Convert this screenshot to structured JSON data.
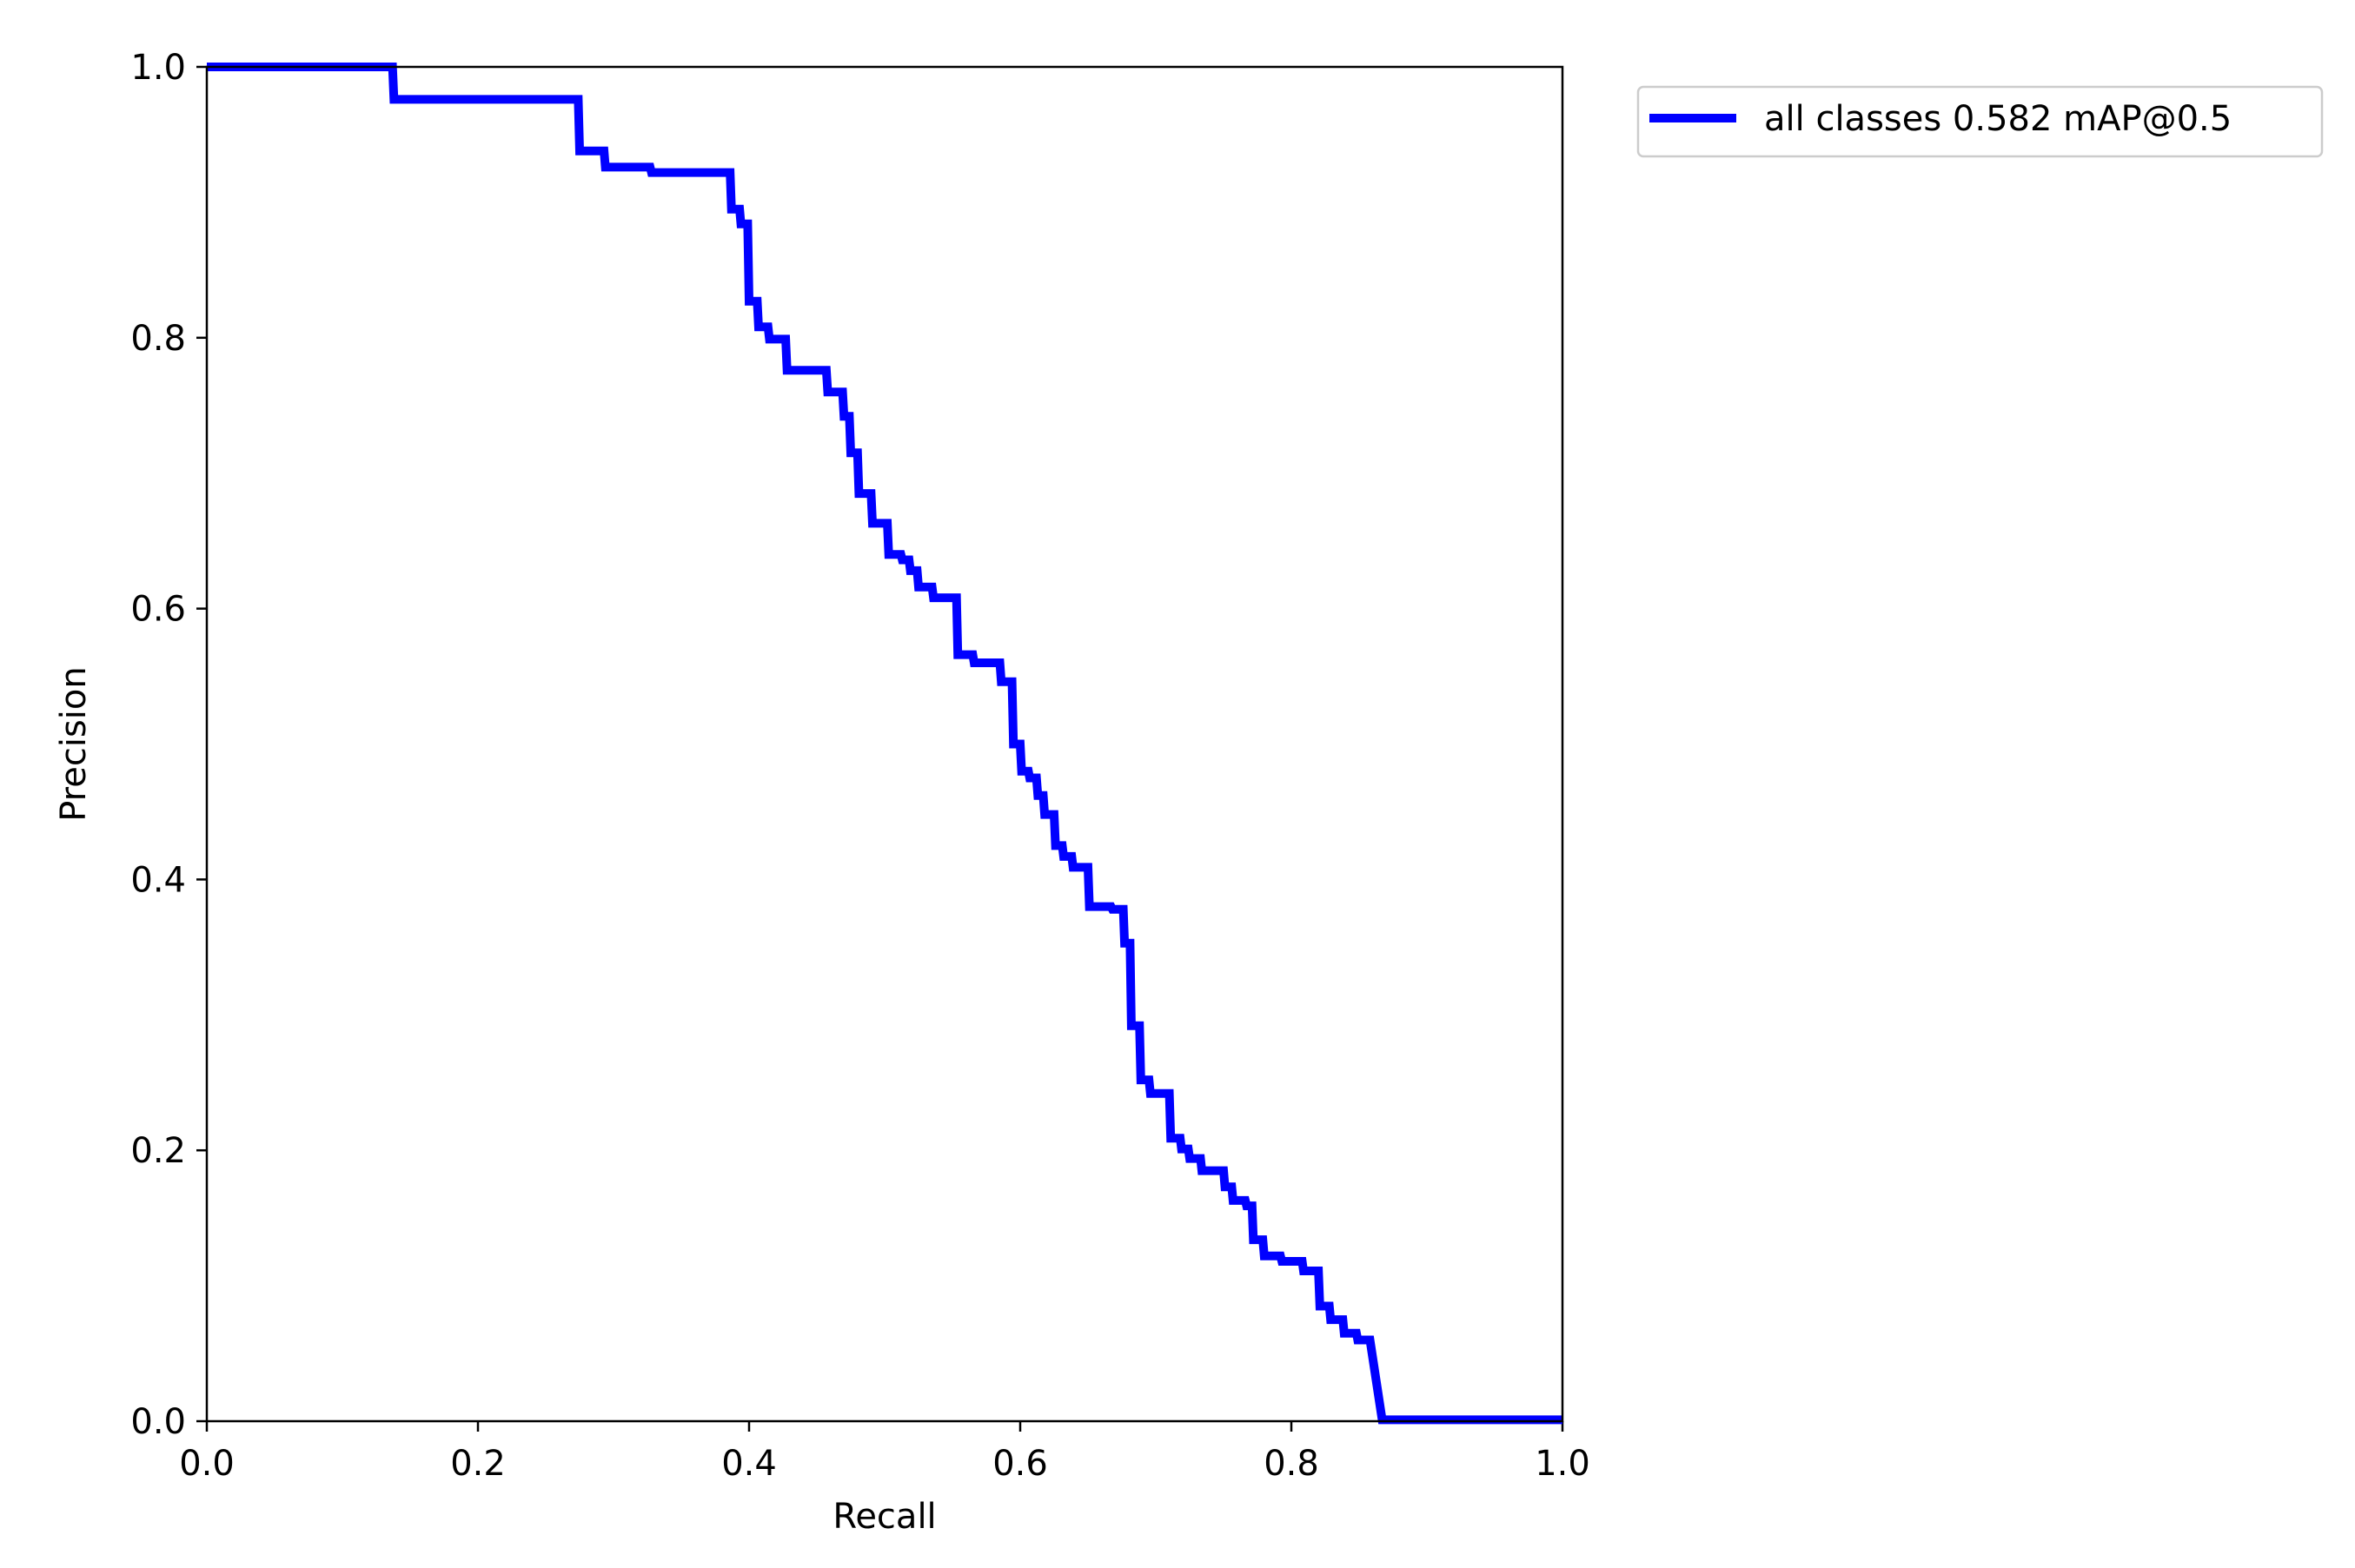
{
  "chart_data": {
    "type": "line",
    "title": "",
    "xlabel": "Recall",
    "ylabel": "Precision",
    "xlim": [
      0,
      1
    ],
    "ylim": [
      0,
      1
    ],
    "xticks": [
      "0.0",
      "0.2",
      "0.4",
      "0.6",
      "0.8",
      "1.0"
    ],
    "yticks": [
      "0.0",
      "0.2",
      "0.4",
      "0.6",
      "0.8",
      "1.0"
    ],
    "grid": false,
    "legend_position": "outside top-right",
    "series": [
      {
        "name": "all classes 0.582 mAP@0.5",
        "color": "#0000ff",
        "x": [
          0.0,
          0.137,
          0.138,
          0.274,
          0.275,
          0.293,
          0.294,
          0.327,
          0.328,
          0.386,
          0.387,
          0.393,
          0.394,
          0.399,
          0.4,
          0.406,
          0.407,
          0.414,
          0.415,
          0.427,
          0.428,
          0.457,
          0.458,
          0.469,
          0.47,
          0.474,
          0.475,
          0.48,
          0.481,
          0.49,
          0.491,
          0.502,
          0.503,
          0.512,
          0.513,
          0.518,
          0.519,
          0.524,
          0.525,
          0.535,
          0.536,
          0.553,
          0.554,
          0.565,
          0.566,
          0.585,
          0.586,
          0.594,
          0.595,
          0.6,
          0.601,
          0.606,
          0.607,
          0.612,
          0.613,
          0.617,
          0.618,
          0.625,
          0.626,
          0.631,
          0.632,
          0.638,
          0.639,
          0.65,
          0.651,
          0.667,
          0.668,
          0.676,
          0.677,
          0.681,
          0.682,
          0.688,
          0.689,
          0.695,
          0.696,
          0.71,
          0.711,
          0.718,
          0.719,
          0.724,
          0.725,
          0.733,
          0.734,
          0.75,
          0.751,
          0.756,
          0.757,
          0.766,
          0.767,
          0.771,
          0.772,
          0.779,
          0.78,
          0.792,
          0.793,
          0.808,
          0.809,
          0.82,
          0.821,
          0.828,
          0.829,
          0.838,
          0.839,
          0.848,
          0.849,
          0.858,
          0.867,
          1.0
        ],
        "y": [
          1.0,
          1.0,
          0.976,
          0.976,
          0.938,
          0.938,
          0.926,
          0.926,
          0.922,
          0.922,
          0.895,
          0.895,
          0.884,
          0.884,
          0.827,
          0.827,
          0.808,
          0.808,
          0.799,
          0.799,
          0.776,
          0.776,
          0.76,
          0.76,
          0.742,
          0.742,
          0.715,
          0.715,
          0.685,
          0.685,
          0.663,
          0.663,
          0.64,
          0.64,
          0.636,
          0.636,
          0.628,
          0.628,
          0.616,
          0.616,
          0.608,
          0.608,
          0.566,
          0.566,
          0.56,
          0.56,
          0.546,
          0.546,
          0.5,
          0.5,
          0.48,
          0.48,
          0.475,
          0.475,
          0.462,
          0.462,
          0.448,
          0.448,
          0.425,
          0.425,
          0.417,
          0.417,
          0.409,
          0.409,
          0.38,
          0.38,
          0.378,
          0.378,
          0.353,
          0.353,
          0.292,
          0.292,
          0.252,
          0.252,
          0.242,
          0.242,
          0.209,
          0.209,
          0.201,
          0.201,
          0.194,
          0.194,
          0.185,
          0.185,
          0.173,
          0.173,
          0.163,
          0.163,
          0.159,
          0.159,
          0.134,
          0.134,
          0.122,
          0.122,
          0.118,
          0.118,
          0.111,
          0.111,
          0.085,
          0.085,
          0.075,
          0.075,
          0.065,
          0.065,
          0.06,
          0.06,
          0.001,
          0.001
        ]
      }
    ]
  }
}
